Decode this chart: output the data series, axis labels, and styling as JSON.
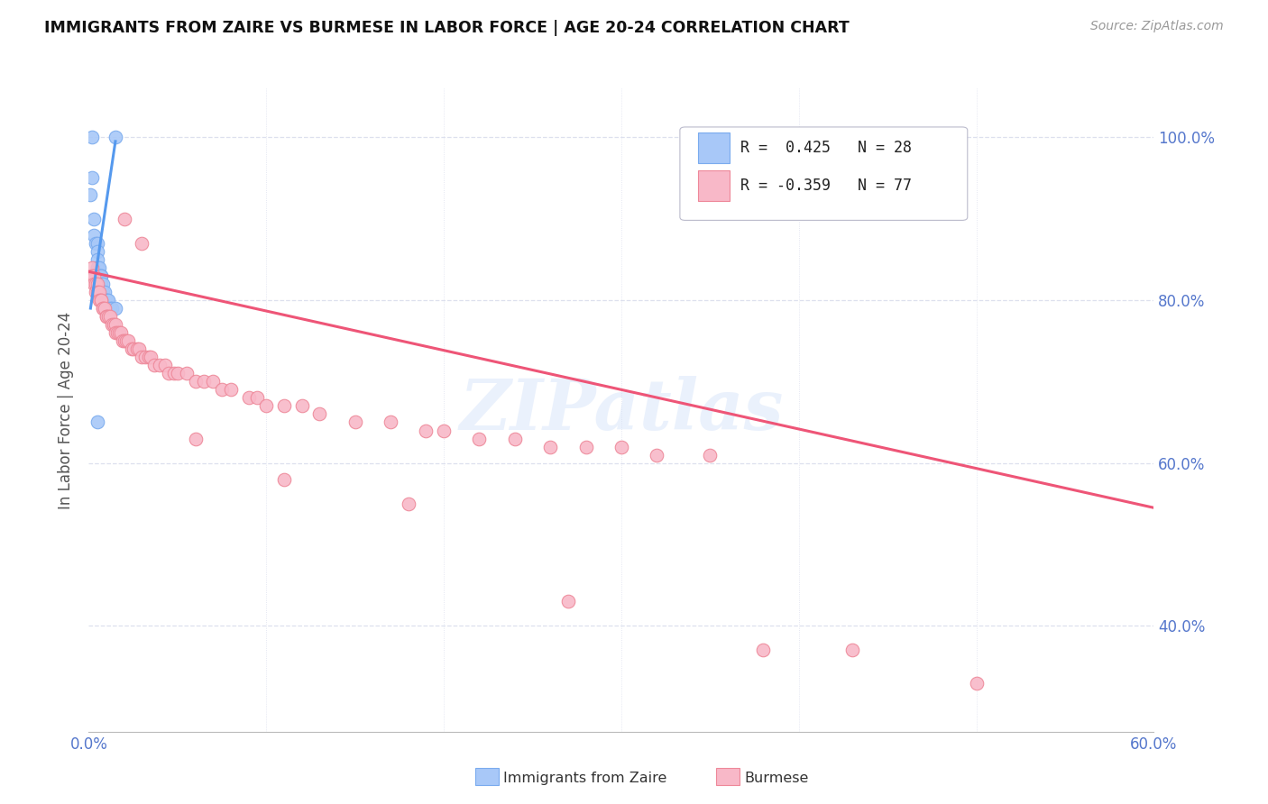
{
  "title": "IMMIGRANTS FROM ZAIRE VS BURMESE IN LABOR FORCE | AGE 20-24 CORRELATION CHART",
  "source": "Source: ZipAtlas.com",
  "ylabel": "In Labor Force | Age 20-24",
  "x_min": 0.0,
  "x_max": 0.6,
  "y_min": 0.27,
  "y_max": 1.06,
  "x_ticks": [
    0.0,
    0.1,
    0.2,
    0.3,
    0.4,
    0.5,
    0.6
  ],
  "x_tick_labels": [
    "0.0%",
    "",
    "",
    "",
    "",
    "",
    "60.0%"
  ],
  "y_ticks": [
    0.4,
    0.6,
    0.8,
    1.0
  ],
  "y_tick_labels": [
    "40.0%",
    "60.0%",
    "80.0%",
    "100.0%"
  ],
  "grid_color": "#dde0ee",
  "background_color": "#ffffff",
  "zaire_color": "#a8c8f8",
  "zaire_edge_color": "#7aabee",
  "burmese_color": "#f8b8c8",
  "burmese_edge_color": "#ee8899",
  "zaire_line_color": "#5599ee",
  "burmese_line_color": "#ee5577",
  "watermark": "ZIPatlas",
  "legend_R_zaire": "R =  0.425",
  "legend_N_zaire": "N = 28",
  "legend_R_burmese": "R = -0.359",
  "legend_N_burmese": "N = 77",
  "zaire_scatter_x": [
    0.002,
    0.015,
    0.002,
    0.001,
    0.003,
    0.003,
    0.004,
    0.005,
    0.005,
    0.005,
    0.005,
    0.005,
    0.006,
    0.006,
    0.007,
    0.007,
    0.007,
    0.008,
    0.008,
    0.009,
    0.009,
    0.01,
    0.01,
    0.011,
    0.012,
    0.013,
    0.015,
    0.005
  ],
  "zaire_scatter_y": [
    1.0,
    1.0,
    0.95,
    0.93,
    0.9,
    0.88,
    0.87,
    0.87,
    0.86,
    0.85,
    0.84,
    0.84,
    0.84,
    0.83,
    0.83,
    0.83,
    0.82,
    0.82,
    0.81,
    0.81,
    0.8,
    0.8,
    0.8,
    0.8,
    0.79,
    0.79,
    0.79,
    0.65
  ],
  "burmese_scatter_x": [
    0.001,
    0.002,
    0.002,
    0.003,
    0.003,
    0.004,
    0.004,
    0.005,
    0.005,
    0.006,
    0.006,
    0.007,
    0.007,
    0.008,
    0.008,
    0.009,
    0.01,
    0.01,
    0.011,
    0.012,
    0.013,
    0.014,
    0.015,
    0.015,
    0.016,
    0.017,
    0.018,
    0.019,
    0.02,
    0.021,
    0.022,
    0.024,
    0.025,
    0.027,
    0.028,
    0.03,
    0.032,
    0.034,
    0.035,
    0.037,
    0.04,
    0.043,
    0.045,
    0.048,
    0.05,
    0.055,
    0.06,
    0.065,
    0.07,
    0.075,
    0.08,
    0.09,
    0.095,
    0.1,
    0.11,
    0.12,
    0.13,
    0.15,
    0.17,
    0.19,
    0.2,
    0.22,
    0.24,
    0.26,
    0.28,
    0.3,
    0.32,
    0.35,
    0.02,
    0.03,
    0.06,
    0.11,
    0.18,
    0.27,
    0.38,
    0.43,
    0.5
  ],
  "burmese_scatter_y": [
    0.83,
    0.84,
    0.83,
    0.83,
    0.82,
    0.82,
    0.81,
    0.82,
    0.81,
    0.81,
    0.8,
    0.8,
    0.8,
    0.79,
    0.79,
    0.79,
    0.78,
    0.78,
    0.78,
    0.78,
    0.77,
    0.77,
    0.77,
    0.76,
    0.76,
    0.76,
    0.76,
    0.75,
    0.75,
    0.75,
    0.75,
    0.74,
    0.74,
    0.74,
    0.74,
    0.73,
    0.73,
    0.73,
    0.73,
    0.72,
    0.72,
    0.72,
    0.71,
    0.71,
    0.71,
    0.71,
    0.7,
    0.7,
    0.7,
    0.69,
    0.69,
    0.68,
    0.68,
    0.67,
    0.67,
    0.67,
    0.66,
    0.65,
    0.65,
    0.64,
    0.64,
    0.63,
    0.63,
    0.62,
    0.62,
    0.62,
    0.61,
    0.61,
    0.9,
    0.87,
    0.63,
    0.58,
    0.55,
    0.43,
    0.37,
    0.37,
    0.33
  ],
  "zaire_trend_x": [
    0.001,
    0.015
  ],
  "zaire_trend_y": [
    0.79,
    0.995
  ],
  "burmese_trend_x": [
    0.0,
    0.6
  ],
  "burmese_trend_y": [
    0.835,
    0.545
  ]
}
